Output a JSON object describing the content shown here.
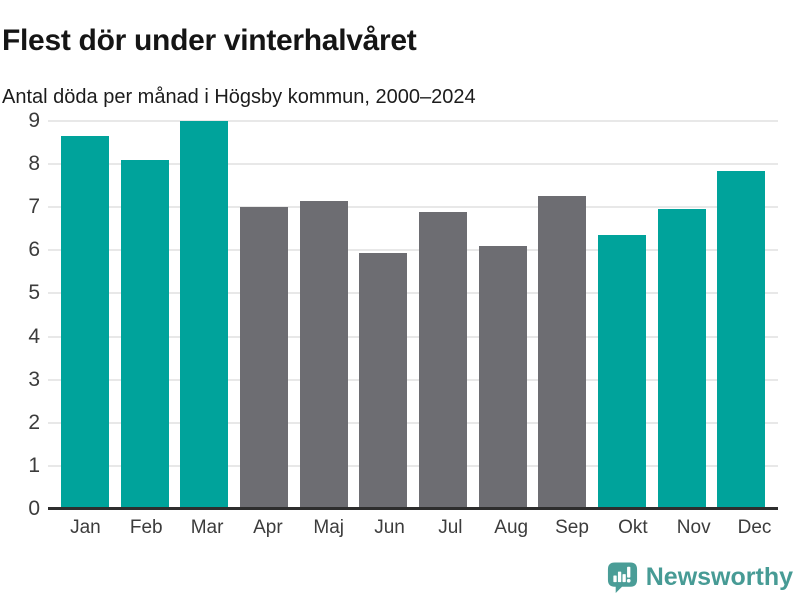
{
  "header": {
    "title": "Flest dör under vinterhalvåret",
    "subtitle": "Antal döda per månad i Högsby kommun, 2000–2024"
  },
  "chart_data": {
    "type": "bar",
    "title": "Flest dör under vinterhalvåret",
    "subtitle": "Antal döda per månad i Högsby kommun, 2000–2024",
    "categories": [
      "Jan",
      "Feb",
      "Mar",
      "Apr",
      "Maj",
      "Jun",
      "Jul",
      "Aug",
      "Sep",
      "Okt",
      "Nov",
      "Dec"
    ],
    "values": [
      8.65,
      8.1,
      9.0,
      7.0,
      7.15,
      5.95,
      6.9,
      6.1,
      7.25,
      6.35,
      6.95,
      7.85
    ],
    "highlighted": [
      true,
      true,
      true,
      false,
      false,
      false,
      false,
      false,
      false,
      true,
      true,
      true
    ],
    "xlabel": "",
    "ylabel": "",
    "ylim": [
      0,
      9
    ],
    "yticks": [
      0,
      1,
      2,
      3,
      4,
      5,
      6,
      7,
      8,
      9
    ],
    "grid": true,
    "legend_position": "none",
    "bar_color_highlight": "#00a39b",
    "bar_color_default": "#6d6d72",
    "gridline_color": "#e8e8e8",
    "axis_line_color": "#2e2e2e",
    "tick_label_color": "#3c3c3c"
  },
  "footer": {
    "brand": "Newsworthy",
    "logo_icon": "newsworthy-bar-chart-speech-bubble",
    "brand_color": "#479b95"
  }
}
